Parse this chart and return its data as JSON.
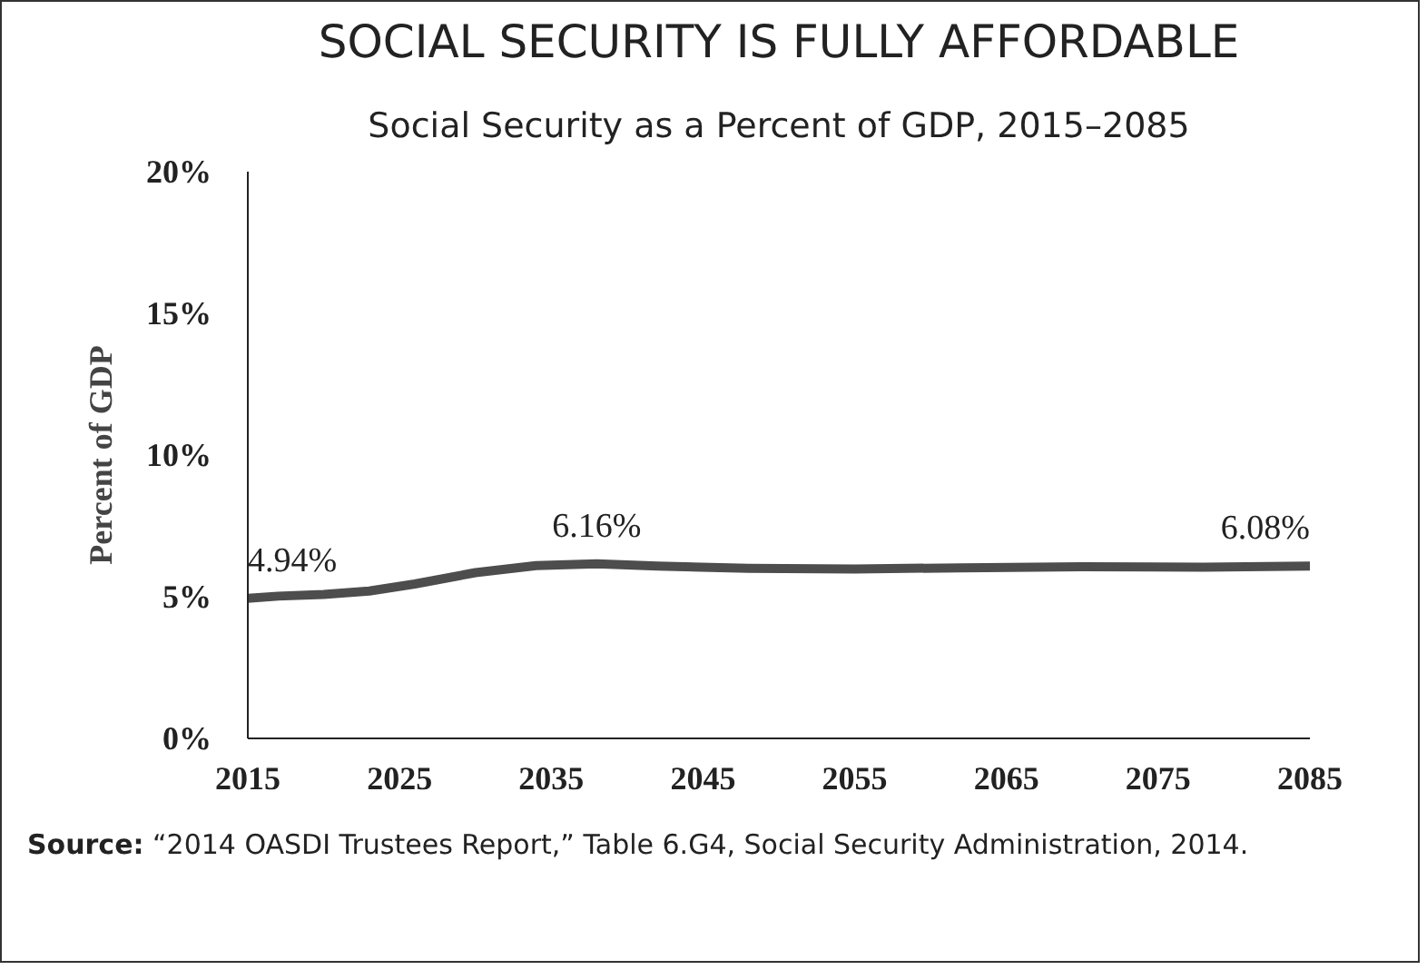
{
  "chart_data": {
    "type": "line",
    "title": "SOCIAL SECURITY IS FULLY AFFORDABLE",
    "subtitle": "Social Security as a Percent of GDP, 2015–2085",
    "ylabel": "Percent of GDP",
    "x": [
      2015,
      2017,
      2020,
      2023,
      2026,
      2030,
      2034,
      2038,
      2042,
      2048,
      2055,
      2062,
      2070,
      2078,
      2085
    ],
    "series": [
      {
        "color": "#4d4d4d",
        "values": [
          4.94,
          5.02,
          5.08,
          5.2,
          5.45,
          5.85,
          6.1,
          6.16,
          6.08,
          6.0,
          5.98,
          6.02,
          6.06,
          6.04,
          6.08
        ]
      }
    ],
    "xlim": [
      2015,
      2085
    ],
    "ylim": [
      0,
      20
    ],
    "xticks": [
      2015,
      2025,
      2035,
      2045,
      2055,
      2065,
      2075,
      2085
    ],
    "yticks": [
      {
        "value": 0,
        "label": "0%"
      },
      {
        "value": 5,
        "label": "5%"
      },
      {
        "value": 10,
        "label": "10%"
      },
      {
        "value": 15,
        "label": "15%"
      },
      {
        "value": 20,
        "label": "20%"
      }
    ],
    "grid": false,
    "marker": "none",
    "line_style": "solid",
    "annotations": [
      {
        "text": "4.94%",
        "x": 2015,
        "y": 4.94
      },
      {
        "text": "6.16%",
        "x": 2038,
        "y": 6.16
      },
      {
        "text": "6.08%",
        "x": 2085,
        "y": 6.08
      },
      "Source: “2014 OASDI Trustees Report,” Table 6.G4, Social Security Administration, 2014."
    ]
  }
}
